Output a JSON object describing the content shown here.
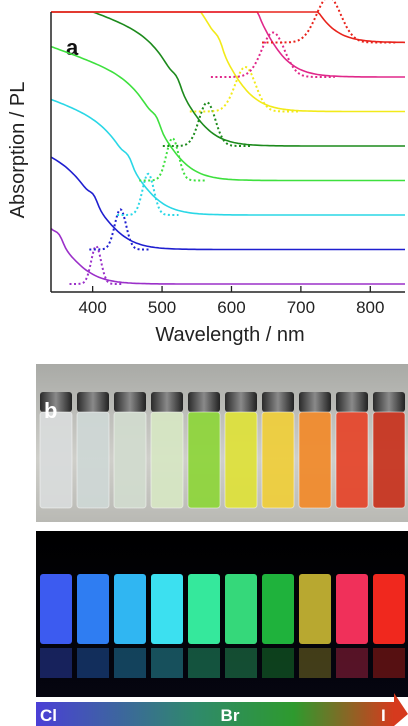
{
  "chart_data": {
    "type": "line",
    "panel_label": "a",
    "xlabel": "Wavelength / nm",
    "ylabel": "Absorption / PL",
    "xlim": [
      340,
      850
    ],
    "xticks": [
      "400",
      "500",
      "600",
      "700",
      "800"
    ],
    "xtick_values": [
      400,
      500,
      600,
      700,
      800
    ],
    "grid": false,
    "legend": "none",
    "series": [
      {
        "color": "#9b30c9",
        "absorption_edge_nm": 360,
        "pl_peak_nm": 405,
        "pl_fwhm_nm": 12,
        "pl_height": 0.45
      },
      {
        "color": "#1f1fd0",
        "absorption_edge_nm": 410,
        "pl_peak_nm": 440,
        "pl_fwhm_nm": 14,
        "pl_height": 0.55
      },
      {
        "color": "#2ad7e6",
        "absorption_edge_nm": 460,
        "pl_peak_nm": 480,
        "pl_fwhm_nm": 14,
        "pl_height": 0.6
      },
      {
        "color": "#3ee03e",
        "absorption_edge_nm": 500,
        "pl_peak_nm": 515,
        "pl_fwhm_nm": 15,
        "pl_height": 0.65
      },
      {
        "color": "#1c8a1c",
        "absorption_edge_nm": 530,
        "pl_peak_nm": 565,
        "pl_fwhm_nm": 20,
        "pl_height": 0.7
      },
      {
        "color": "#f2ea1a",
        "absorption_edge_nm": 590,
        "pl_peak_nm": 620,
        "pl_fwhm_nm": 25,
        "pl_height": 0.75
      },
      {
        "color": "#e0288a",
        "absorption_edge_nm": 640,
        "pl_peak_nm": 660,
        "pl_fwhm_nm": 28,
        "pl_height": 0.75
      },
      {
        "color": "#e8231c",
        "absorption_edge_nm": 700,
        "pl_peak_nm": 740,
        "pl_fwhm_nm": 30,
        "pl_height": 0.8
      }
    ]
  },
  "photo_panel": {
    "label": "b",
    "vial_count": 10,
    "ambient_tints": [
      "#d9dcdc",
      "#cfd8d6",
      "#d2dccf",
      "#d7e7c4",
      "#8ed63a",
      "#dfe23a",
      "#f0cf3a",
      "#f28a2a",
      "#e6452a",
      "#c8321d"
    ],
    "emission_colors": [
      "#3c5bf0",
      "#2f7df2",
      "#30b6f2",
      "#3ce0f0",
      "#35e89c",
      "#35d87a",
      "#1fb23c",
      "#b8a830",
      "#f0305a",
      "#f0281e"
    ]
  },
  "halide_bar": {
    "labels": [
      "Cl",
      "Br",
      "I"
    ],
    "gradient_colors": [
      "#4b3fd6",
      "#2f8a6a",
      "#2e9a2e",
      "#d63a1e"
    ]
  }
}
